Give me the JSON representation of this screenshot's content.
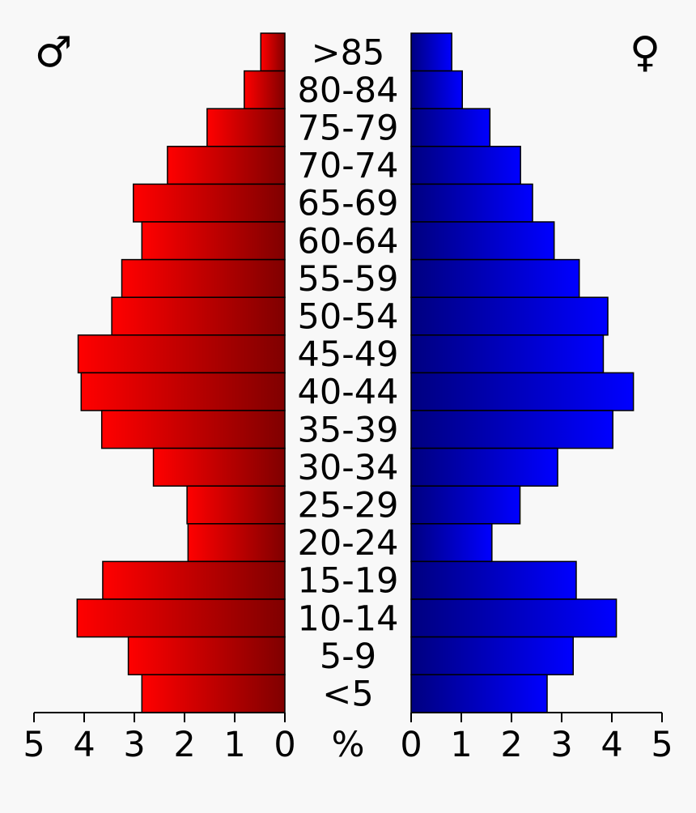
{
  "chart_data": {
    "type": "bar",
    "orientation": "horizontal",
    "layout": "population-pyramid",
    "categories": [
      ">85",
      "80-84",
      "75-79",
      "70-74",
      "65-69",
      "60-64",
      "55-59",
      "50-54",
      "45-49",
      "40-44",
      "35-39",
      "30-34",
      "25-29",
      "20-24",
      "15-19",
      "10-14",
      "5-9",
      "<5"
    ],
    "series": [
      {
        "name": "♂",
        "side": "left",
        "color": "#ff0000",
        "values": [
          0.48,
          0.81,
          1.55,
          2.34,
          3.02,
          2.85,
          3.25,
          3.45,
          4.12,
          4.06,
          3.65,
          2.62,
          1.95,
          1.93,
          3.63,
          4.14,
          3.12,
          2.85
        ]
      },
      {
        "name": "♀",
        "side": "right",
        "color": "#0000ff",
        "values": [
          0.81,
          1.02,
          1.57,
          2.18,
          2.42,
          2.85,
          3.35,
          3.92,
          3.83,
          4.43,
          4.02,
          2.92,
          2.17,
          1.61,
          3.29,
          4.09,
          3.23,
          2.71
        ]
      }
    ],
    "xlim": [
      0,
      5
    ],
    "xticks": [
      "5",
      "4",
      "3",
      "2",
      "1",
      "0",
      "%",
      "0",
      "1",
      "2",
      "3",
      "4",
      "5"
    ],
    "unit_label": "%",
    "male_symbol": "♂",
    "female_symbol": "♀",
    "grid": false
  }
}
